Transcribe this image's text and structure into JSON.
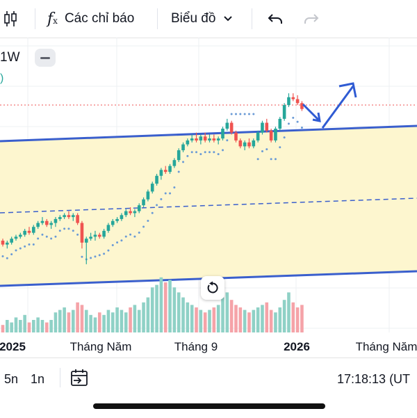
{
  "toolbar": {
    "indicators_label": "Các chỉ báo",
    "chart_type_label": "Biểu đồ"
  },
  "legend": {
    "interval": "1W",
    "extra": ")"
  },
  "chart_data": {
    "type": "candlestick",
    "x_labels": [
      "2025",
      "Tháng Năm",
      "Tháng 9",
      "2026",
      "Tháng Năm"
    ],
    "bold_x_labels": [
      "2025",
      "2026"
    ],
    "colors": {
      "up": "#26a69a",
      "down": "#ef5350",
      "upVol": "#8fd1c6",
      "downVol": "#f5a3a8",
      "channel": "#3a5fcd",
      "channelFill": "#fdf6cf",
      "dots": "#6b9bd6",
      "priceLine": "#ef5350"
    },
    "candles": [
      [
        1.0,
        1.05,
        0.85,
        0.9
      ],
      [
        0.9,
        1.0,
        0.8,
        0.95
      ],
      [
        0.95,
        1.1,
        0.9,
        1.05
      ],
      [
        1.05,
        1.15,
        1.0,
        1.1
      ],
      [
        1.1,
        1.2,
        1.05,
        1.15
      ],
      [
        1.15,
        1.3,
        1.1,
        1.25
      ],
      [
        1.25,
        1.35,
        1.15,
        1.2
      ],
      [
        1.2,
        1.4,
        1.15,
        1.35
      ],
      [
        1.35,
        1.5,
        1.3,
        1.45
      ],
      [
        1.45,
        1.6,
        1.4,
        1.5
      ],
      [
        1.5,
        1.55,
        1.35,
        1.4
      ],
      [
        1.4,
        1.5,
        1.3,
        1.45
      ],
      [
        1.45,
        1.6,
        1.35,
        1.55
      ],
      [
        1.55,
        1.65,
        1.5,
        1.6
      ],
      [
        1.6,
        1.7,
        1.55,
        1.65
      ],
      [
        1.65,
        1.75,
        1.55,
        1.6
      ],
      [
        1.6,
        1.7,
        1.5,
        1.65
      ],
      [
        1.65,
        1.7,
        1.4,
        1.45
      ],
      [
        1.45,
        1.5,
        0.8,
        0.95
      ],
      [
        0.95,
        1.1,
        0.4,
        1.05
      ],
      [
        1.05,
        1.2,
        1.0,
        1.1
      ],
      [
        1.1,
        1.25,
        1.0,
        1.15
      ],
      [
        1.15,
        1.2,
        1.05,
        1.1
      ],
      [
        1.1,
        1.3,
        1.05,
        1.25
      ],
      [
        1.25,
        1.45,
        1.2,
        1.4
      ],
      [
        1.4,
        1.55,
        1.35,
        1.5
      ],
      [
        1.5,
        1.6,
        1.45,
        1.55
      ],
      [
        1.55,
        1.7,
        1.5,
        1.65
      ],
      [
        1.65,
        1.8,
        1.6,
        1.75
      ],
      [
        1.75,
        1.85,
        1.65,
        1.7
      ],
      [
        1.7,
        1.8,
        1.6,
        1.75
      ],
      [
        1.75,
        1.95,
        1.7,
        1.9
      ],
      [
        1.9,
        2.1,
        1.85,
        2.05
      ],
      [
        2.05,
        2.3,
        2.0,
        2.25
      ],
      [
        2.25,
        2.5,
        2.2,
        2.45
      ],
      [
        2.45,
        2.7,
        2.4,
        2.65
      ],
      [
        2.65,
        2.85,
        2.55,
        2.8
      ],
      [
        2.8,
        2.9,
        2.7,
        2.75
      ],
      [
        2.75,
        2.95,
        2.7,
        2.9
      ],
      [
        2.9,
        3.1,
        2.85,
        3.05
      ],
      [
        3.05,
        3.35,
        3.0,
        3.3
      ],
      [
        3.3,
        3.5,
        3.25,
        3.45
      ],
      [
        3.45,
        3.6,
        3.4,
        3.55
      ],
      [
        3.55,
        3.7,
        3.5,
        3.6
      ],
      [
        3.6,
        3.75,
        3.5,
        3.55
      ],
      [
        3.55,
        3.7,
        3.45,
        3.65
      ],
      [
        3.65,
        3.75,
        3.5,
        3.55
      ],
      [
        3.55,
        3.7,
        3.5,
        3.6
      ],
      [
        3.6,
        3.7,
        3.5,
        3.55
      ],
      [
        3.55,
        3.65,
        3.45,
        3.6
      ],
      [
        3.6,
        3.9,
        3.55,
        3.85
      ],
      [
        3.85,
        4.1,
        3.8,
        4.0
      ],
      [
        4.0,
        4.05,
        3.7,
        3.75
      ],
      [
        3.75,
        3.8,
        3.5,
        3.55
      ],
      [
        3.55,
        3.6,
        3.35,
        3.4
      ],
      [
        3.4,
        3.55,
        3.3,
        3.5
      ],
      [
        3.5,
        3.6,
        3.35,
        3.4
      ],
      [
        3.4,
        3.6,
        3.35,
        3.55
      ],
      [
        3.55,
        3.8,
        3.5,
        3.75
      ],
      [
        3.75,
        4.05,
        3.7,
        4.0
      ],
      [
        4.0,
        4.1,
        3.75,
        3.8
      ],
      [
        3.8,
        3.85,
        3.5,
        3.55
      ],
      [
        3.55,
        3.9,
        3.5,
        3.85
      ],
      [
        3.85,
        4.15,
        3.8,
        4.1
      ],
      [
        4.1,
        4.5,
        4.05,
        4.45
      ],
      [
        4.45,
        4.75,
        4.4,
        4.65
      ],
      [
        4.65,
        4.75,
        4.55,
        4.6
      ],
      [
        4.6,
        4.7,
        4.45,
        4.5
      ],
      [
        4.5,
        4.55,
        4.3,
        4.35
      ]
    ],
    "volumes": [
      3,
      5,
      4,
      6,
      5,
      7,
      4,
      5,
      6,
      5,
      4,
      5,
      8,
      9,
      10,
      8,
      9,
      12,
      11,
      9,
      7,
      6,
      8,
      7,
      9,
      8,
      10,
      9,
      8,
      10,
      11,
      9,
      12,
      14,
      18,
      19,
      22,
      20,
      21,
      18,
      16,
      14,
      12,
      11,
      10,
      9,
      8,
      9,
      10,
      11,
      14,
      16,
      13,
      11,
      10,
      9,
      8,
      9,
      10,
      11,
      12,
      9,
      8,
      10,
      13,
      16,
      12,
      10,
      11
    ],
    "annotations": {
      "channel": "ascending parallel channel",
      "arrow": "breakout up"
    }
  },
  "bottom": {
    "range_5n": "5n",
    "range_1n": "1n",
    "time": "17:18:13 (UT"
  }
}
